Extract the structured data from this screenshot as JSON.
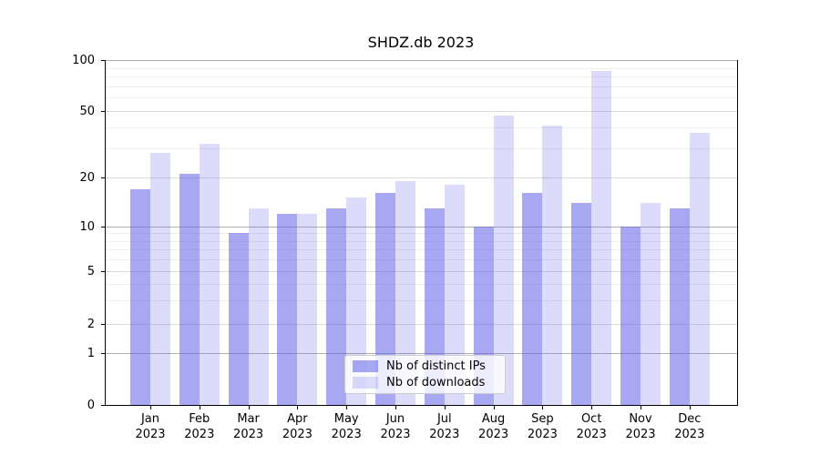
{
  "chart_data": {
    "type": "bar",
    "title": "SHDZ.db 2023",
    "year_label": "2023",
    "categories": [
      "Jan",
      "Feb",
      "Mar",
      "Apr",
      "May",
      "Jun",
      "Jul",
      "Aug",
      "Sep",
      "Oct",
      "Nov",
      "Dec"
    ],
    "series": [
      {
        "name": "Nb of distinct IPs",
        "values": [
          17,
          21,
          9,
          12,
          13,
          16,
          13,
          10,
          16,
          14,
          10,
          13
        ],
        "color": "rgba(95,95,232,0.55)"
      },
      {
        "name": "Nb of downloads",
        "values": [
          28,
          32,
          13,
          12,
          15,
          19,
          18,
          47,
          41,
          86,
          14,
          37
        ],
        "color": "rgba(95,95,232,0.22)"
      }
    ],
    "yscale": "symlog",
    "ylim": [
      0,
      100
    ],
    "ytick_labels": [
      "0",
      "1",
      "2",
      "5",
      "10",
      "20",
      "50",
      "100"
    ],
    "ytick_values": [
      0,
      1,
      2,
      5,
      10,
      20,
      50,
      100
    ],
    "grid": true,
    "legend_position": "lower center"
  },
  "colors": {
    "bar_ips": "rgba(95,95,232,0.55)",
    "bar_downloads": "rgba(95,95,232,0.22)",
    "grid_major": "#b0b0b0",
    "grid_mid": "#dcdcdc",
    "grid_minor": "#ececec",
    "spine": "#000000",
    "legend_border": "#cccccc"
  }
}
